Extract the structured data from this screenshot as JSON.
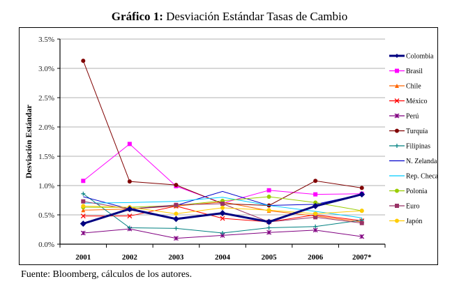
{
  "title_bold": "Gráfico 1:",
  "title_rest": " Desviación Estándar Tasas de Cambio",
  "source": "Fuente: Bloomberg, cálculos de los autores.",
  "chart_data": {
    "type": "line",
    "title": "Gráfico 1: Desviación Estándar Tasas de Cambio",
    "xlabel": "",
    "ylabel": "Desviación Estándar",
    "categories": [
      "2001",
      "2002",
      "2003",
      "2004",
      "2005",
      "2006",
      "2007*"
    ],
    "ylim": [
      0,
      3.5
    ],
    "yticks": [
      "0.0%",
      "0.5%",
      "1.0%",
      "1.5%",
      "2.0%",
      "2.5%",
      "3.0%",
      "3.5%"
    ],
    "grid": true,
    "legend_position": "right",
    "series": [
      {
        "name": "Colombia",
        "color": "#000080",
        "marker": "diamond",
        "width": 3,
        "values": [
          0.35,
          0.6,
          0.43,
          0.53,
          0.38,
          0.65,
          0.85
        ]
      },
      {
        "name": "Brasil",
        "color": "#ff00ff",
        "marker": "square",
        "width": 1,
        "values": [
          1.08,
          1.71,
          0.99,
          0.7,
          0.92,
          0.85,
          0.86
        ]
      },
      {
        "name": "Chile",
        "color": "#ff6600",
        "marker": "triangle",
        "width": 1,
        "values": [
          0.58,
          0.6,
          0.65,
          0.72,
          0.57,
          0.48,
          0.38
        ]
      },
      {
        "name": "México",
        "color": "#ff0000",
        "marker": "x",
        "width": 1,
        "values": [
          0.48,
          0.48,
          0.65,
          0.44,
          0.38,
          0.5,
          0.4
        ]
      },
      {
        "name": "Perú",
        "color": "#800080",
        "marker": "star",
        "width": 1,
        "values": [
          0.19,
          0.26,
          0.1,
          0.15,
          0.2,
          0.24,
          0.13
        ]
      },
      {
        "name": "Turquía",
        "color": "#800000",
        "marker": "circle",
        "width": 1,
        "values": [
          3.13,
          1.07,
          1.01,
          0.69,
          0.66,
          1.08,
          0.96
        ]
      },
      {
        "name": "Filipinas",
        "color": "#008080",
        "marker": "plus",
        "width": 1,
        "values": [
          0.86,
          0.28,
          0.27,
          0.19,
          0.28,
          0.3,
          0.41
        ]
      },
      {
        "name": "N. Zelanda",
        "color": "#0000cc",
        "marker": "none",
        "width": 1,
        "values": [
          0.81,
          0.6,
          0.66,
          0.9,
          0.66,
          0.68,
          0.85
        ]
      },
      {
        "name": "Rep. Checa",
        "color": "#00ccff",
        "marker": "none",
        "width": 1,
        "values": [
          0.7,
          0.71,
          0.73,
          0.8,
          0.66,
          0.56,
          0.45
        ]
      },
      {
        "name": "Polonia",
        "color": "#99cc00",
        "marker": "circle",
        "width": 1,
        "values": [
          0.63,
          0.63,
          0.66,
          0.74,
          0.81,
          0.71,
          0.57
        ]
      },
      {
        "name": "Euro",
        "color": "#993366",
        "marker": "square",
        "width": 1,
        "values": [
          0.73,
          0.6,
          0.67,
          0.69,
          0.38,
          0.46,
          0.36
        ]
      },
      {
        "name": "Japón",
        "color": "#ffcc00",
        "marker": "circle",
        "width": 1,
        "values": [
          0.65,
          0.63,
          0.52,
          0.62,
          0.58,
          0.52,
          0.57
        ]
      }
    ]
  }
}
